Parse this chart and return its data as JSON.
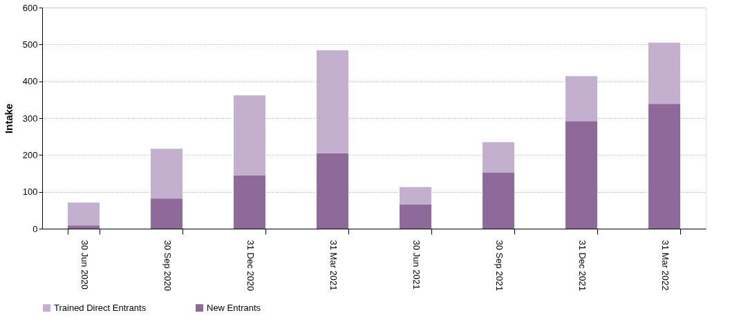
{
  "chart_data": {
    "type": "bar",
    "stacked": true,
    "ylabel": "Intake",
    "categories": [
      "30 Jun 2020",
      "30 Sep 2020",
      "31 Dec 2020",
      "31 Mar 2021",
      "30 Jun 2021",
      "30 Sep 2021",
      "31 Dec 2021",
      "31 Mar 2022"
    ],
    "series": [
      {
        "name": "New Entrants",
        "color": "#8e6a9b",
        "values": [
          9,
          82,
          145,
          205,
          66,
          152,
          292,
          339
        ]
      },
      {
        "name": "Trained Direct Entrants",
        "color": "#c3b0cf",
        "values": [
          62,
          135,
          217,
          279,
          47,
          83,
          122,
          166
        ]
      }
    ],
    "ylim": [
      0,
      600
    ],
    "yticks": [
      0,
      100,
      200,
      300,
      400,
      500,
      600
    ],
    "grid": "y",
    "legend": "bottom"
  }
}
